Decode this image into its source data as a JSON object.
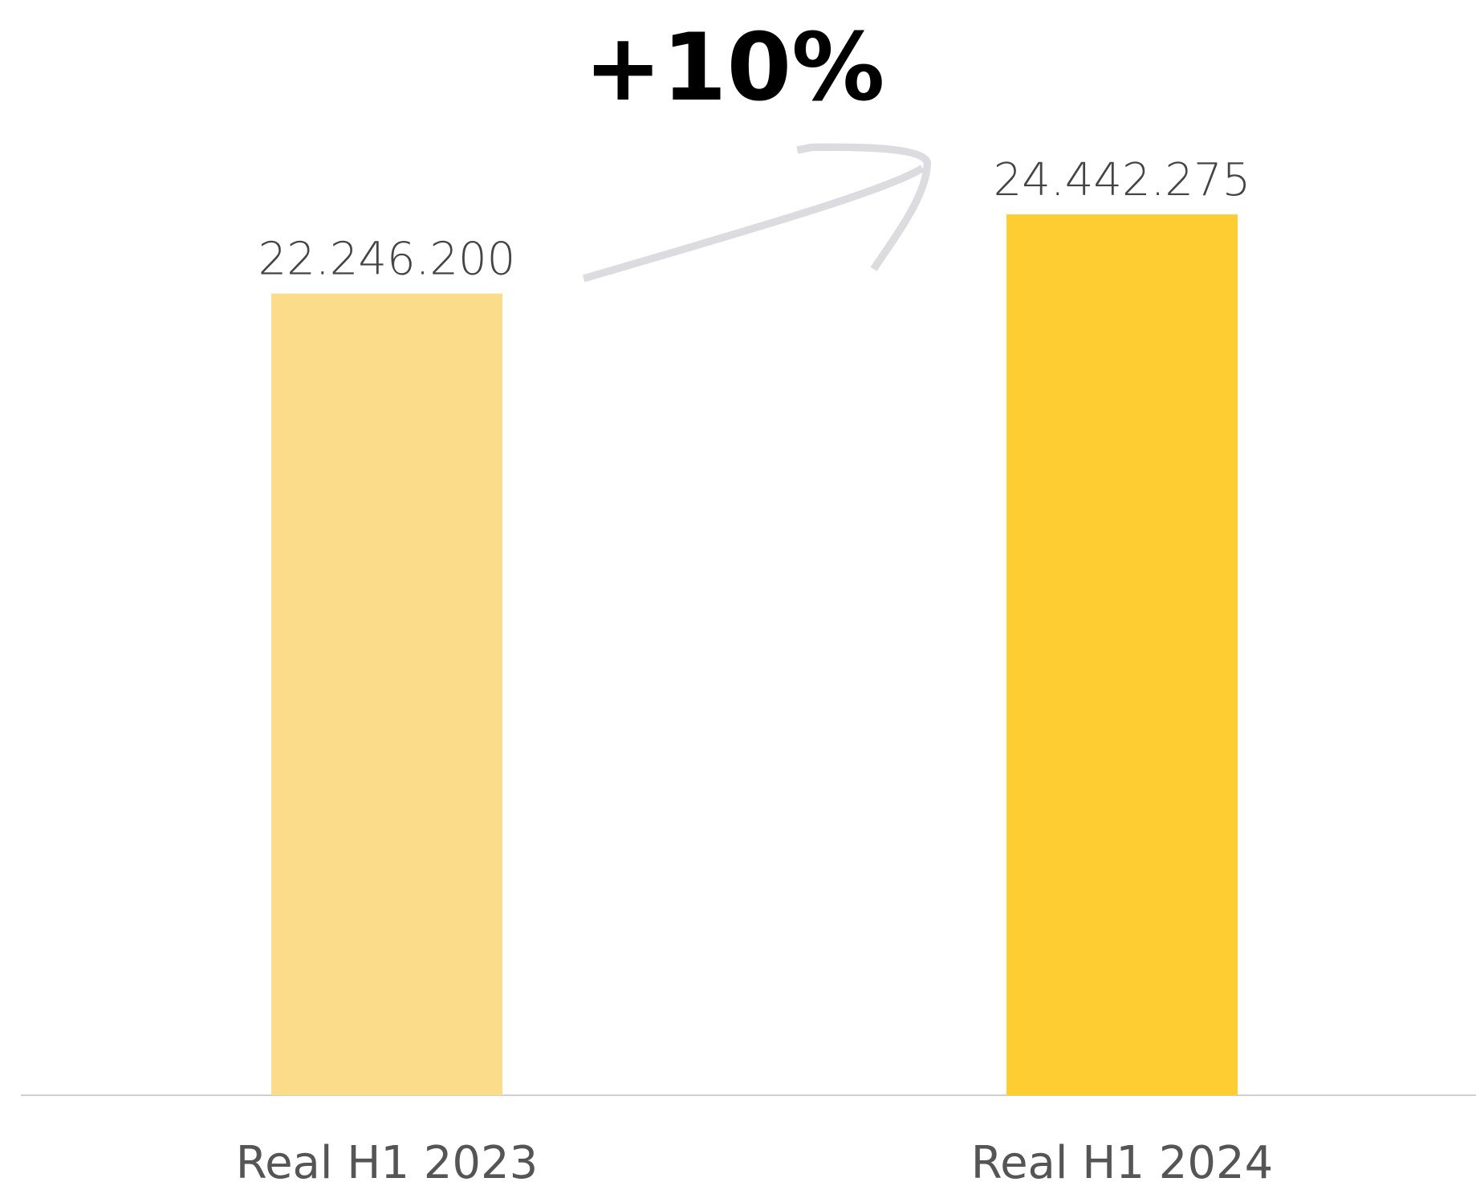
{
  "chart_data": {
    "type": "bar",
    "annotation": "+10%",
    "categories": [
      "Real H1 2023",
      "Real H1 2024"
    ],
    "values": [
      22246200,
      24442275
    ],
    "value_labels": [
      "22.246.200",
      "24.442.275"
    ],
    "colors": [
      "#fbdc8a",
      "#fdcd32"
    ]
  }
}
